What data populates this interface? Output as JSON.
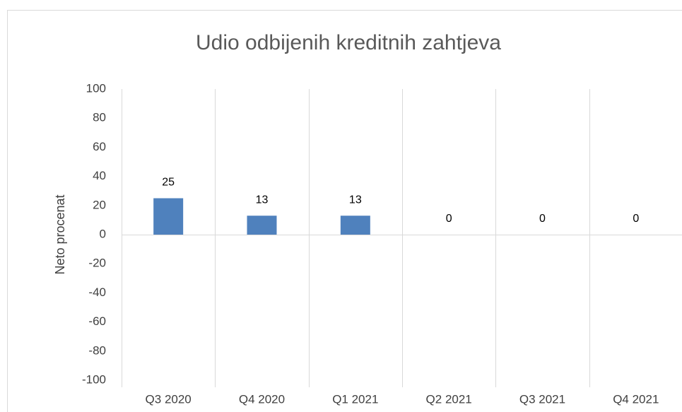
{
  "chart_data": {
    "type": "bar",
    "title": "Udio odbijenih kreditnih zahtjeva",
    "y_label": "Neto procenat",
    "categories": [
      "Q3 2020",
      "Q4 2020",
      "Q1 2021",
      "Q2 2021",
      "Q3 2021",
      "Q4 2021"
    ],
    "values": [
      25,
      13,
      13,
      0,
      0,
      0
    ],
    "color": "#4f81bd",
    "ylim": [
      -100,
      100
    ],
    "yticks": [
      -100,
      -80,
      -60,
      -40,
      -20,
      0,
      20,
      40,
      60,
      80,
      100
    ],
    "grid": false,
    "category_separators": true
  }
}
